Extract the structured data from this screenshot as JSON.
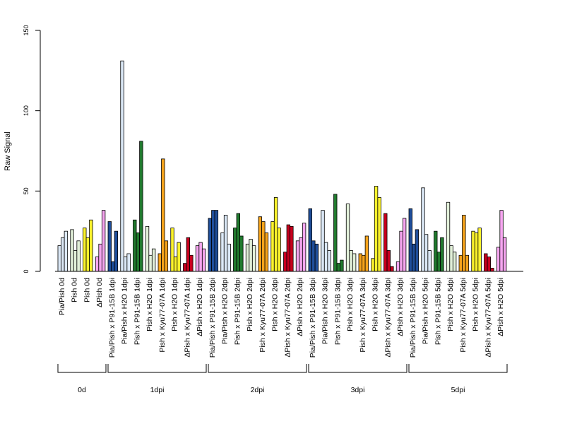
{
  "chart_data": {
    "type": "bar",
    "title": "",
    "xlabel": "",
    "ylabel": "Raw Signal",
    "ylim": [
      0,
      150
    ],
    "yticks": [
      0,
      50,
      100,
      150
    ],
    "grid": false,
    "legend": "none",
    "colors": {
      "light_blue": "#dbe8f6",
      "dark_blue": "#1f4e9a",
      "light_green": "#e2f0d9",
      "dark_green": "#217a2e",
      "orange": "#f5a31b",
      "yellow": "#fbf22c",
      "red": "#c8001e",
      "pink": "#f6a6f0"
    },
    "categories": [
      {
        "label": "Pia/Pish 0d",
        "color": "light_blue",
        "values": [
          16,
          21,
          25
        ]
      },
      {
        "label": "Pish 0d",
        "color": "light_green",
        "values": [
          26,
          13,
          19
        ]
      },
      {
        "label": "Pish 0d",
        "color": "yellow",
        "values": [
          27,
          21,
          32
        ]
      },
      {
        "label": "ΔPish 0d",
        "color": "pink",
        "values": [
          9,
          17,
          38
        ]
      },
      {
        "label": "Pia/Pish x P91-15B 1dpi",
        "color": "dark_blue",
        "values": [
          31,
          6,
          25
        ]
      },
      {
        "label": "Pia/Pish x H2O 1dpi",
        "color": "light_blue",
        "values": [
          131,
          9,
          11
        ]
      },
      {
        "label": "Pish x P91-15B 1dpi",
        "color": "dark_green",
        "values": [
          32,
          24,
          81
        ]
      },
      {
        "label": "Pish x H2O 1dpi",
        "color": "light_green",
        "values": [
          28,
          10,
          14
        ]
      },
      {
        "label": "Pish x Kyu77-07A 1dpi",
        "color": "orange",
        "values": [
          11,
          70,
          19
        ]
      },
      {
        "label": "Pish x H2O 1dpi",
        "color": "yellow",
        "values": [
          27,
          9,
          18
        ]
      },
      {
        "label": "ΔPish x Kyu77-07A 1dpi",
        "color": "red",
        "values": [
          5,
          21,
          10
        ]
      },
      {
        "label": "ΔPish x H2O 1dpi",
        "color": "pink",
        "values": [
          16,
          18,
          14
        ]
      },
      {
        "label": "Pia/Pish x P91-15B 2dpi",
        "color": "dark_blue",
        "values": [
          33,
          38,
          38
        ]
      },
      {
        "label": "Pia/Pish x H2O 2dpi",
        "color": "light_blue",
        "values": [
          24,
          35,
          17
        ]
      },
      {
        "label": "Pish x P91-15B 2dpi",
        "color": "dark_green",
        "values": [
          27,
          36,
          22
        ]
      },
      {
        "label": "Pish x H2O 2dpi",
        "color": "light_green",
        "values": [
          17,
          20,
          16
        ]
      },
      {
        "label": "Pish x Kyu77-07A 2dpi",
        "color": "orange",
        "values": [
          34,
          31,
          24
        ]
      },
      {
        "label": "Pish x H2O 2dpi",
        "color": "yellow",
        "values": [
          31,
          46,
          27
        ]
      },
      {
        "label": "ΔPish x Kyu77-07A 2dpi",
        "color": "red",
        "values": [
          12,
          29,
          28
        ]
      },
      {
        "label": "ΔPish x H2O 2dpi",
        "color": "pink",
        "values": [
          19,
          21,
          30
        ]
      },
      {
        "label": "Pia/Pish x P91-15B 3dpi",
        "color": "dark_blue",
        "values": [
          39,
          19,
          17
        ]
      },
      {
        "label": "Pia/Pish x H2O 3dpi",
        "color": "light_blue",
        "values": [
          38,
          18,
          13
        ]
      },
      {
        "label": "Pish x P91-15B 3dpi",
        "color": "dark_green",
        "values": [
          48,
          5,
          7
        ]
      },
      {
        "label": "Pish x H2O 3dpi",
        "color": "light_green",
        "values": [
          42,
          13,
          11
        ]
      },
      {
        "label": "Pish x Kyu77-07A 3dpi",
        "color": "orange",
        "values": [
          11,
          10,
          22
        ]
      },
      {
        "label": "Pish x H2O 3dpi",
        "color": "yellow",
        "values": [
          8,
          53,
          46
        ]
      },
      {
        "label": "ΔPish x Kyu77-07A 3dpi",
        "color": "red",
        "values": [
          36,
          13,
          3
        ]
      },
      {
        "label": "ΔPish x H2O 3dpi",
        "color": "pink",
        "values": [
          6,
          25,
          33
        ]
      },
      {
        "label": "Pia/Pish x P91-15B 5dpi",
        "color": "dark_blue",
        "values": [
          39,
          17,
          26
        ]
      },
      {
        "label": "Pia/Pish x H2O 5dpi",
        "color": "light_blue",
        "values": [
          52,
          23,
          13
        ]
      },
      {
        "label": "Pish x P91-15B 5dpi",
        "color": "dark_green",
        "values": [
          25,
          12,
          21
        ]
      },
      {
        "label": "Pish x H2O 5dpi",
        "color": "light_green",
        "values": [
          43,
          16,
          12
        ]
      },
      {
        "label": "Pish x Kyu77-07A 5dpi",
        "color": "orange",
        "values": [
          10,
          35,
          10
        ]
      },
      {
        "label": "Pish x H2O 5dpi",
        "color": "yellow",
        "values": [
          25,
          24,
          27
        ]
      },
      {
        "label": "ΔPish x Kyu77-07A 5dpi",
        "color": "red",
        "values": [
          11,
          9,
          2
        ]
      },
      {
        "label": "ΔPish x H2O 5dpi",
        "color": "pink",
        "values": [
          15,
          38,
          21
        ]
      }
    ],
    "groups": [
      {
        "label": "0d",
        "start": 0,
        "end": 3
      },
      {
        "label": "1dpi",
        "start": 4,
        "end": 11
      },
      {
        "label": "2dpi",
        "start": 12,
        "end": 19
      },
      {
        "label": "3dpi",
        "start": 20,
        "end": 27
      },
      {
        "label": "5dpi",
        "start": 28,
        "end": 35
      }
    ]
  }
}
